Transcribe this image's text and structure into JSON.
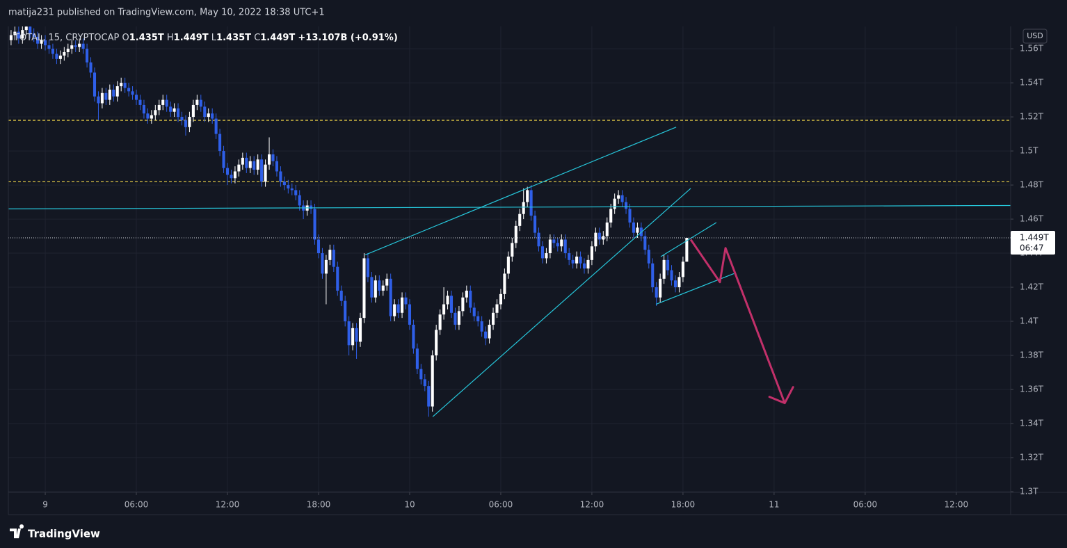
{
  "chart_data": {
    "type": "candlestick",
    "published": "matija231 published on TradingView.com, May 10, 2022 18:38 UTC+1",
    "symbol": "TOTAL, 15, CRYPTOCAP",
    "quote": [
      {
        "label": "O",
        "value": "1.435T"
      },
      {
        "label": "H",
        "value": "1.449T"
      },
      {
        "label": "L",
        "value": "1.435T"
      },
      {
        "label": "C",
        "value": "1.449T"
      }
    ],
    "change": "+13.107B (+0.91%)",
    "currency": "USD",
    "last_price_label": "1.449T",
    "countdown": "06:47",
    "brand": "TradingView",
    "up_color": "#ffffff",
    "down_color": "#2f5fe8",
    "grid": true,
    "xlim": [
      -2.43,
      63.58
    ],
    "ylim": [
      1.2996,
      1.5731
    ],
    "xticks": [
      {
        "value": 0,
        "label": "9"
      },
      {
        "value": 6,
        "label": "06:00"
      },
      {
        "value": 12,
        "label": "12:00"
      },
      {
        "value": 18,
        "label": "18:00"
      },
      {
        "value": 24,
        "label": "10"
      },
      {
        "value": 30,
        "label": "06:00"
      },
      {
        "value": 36,
        "label": "12:00"
      },
      {
        "value": 42,
        "label": "18:00"
      },
      {
        "value": 48,
        "label": "11"
      },
      {
        "value": 54,
        "label": "06:00"
      },
      {
        "value": 60,
        "label": "12:00"
      }
    ],
    "yticks": [
      {
        "value": 1.3,
        "label": "1.3T"
      },
      {
        "value": 1.32,
        "label": "1.32T"
      },
      {
        "value": 1.34,
        "label": "1.34T"
      },
      {
        "value": 1.36,
        "label": "1.36T"
      },
      {
        "value": 1.38,
        "label": "1.38T"
      },
      {
        "value": 1.4,
        "label": "1.4T"
      },
      {
        "value": 1.42,
        "label": "1.42T"
      },
      {
        "value": 1.44,
        "label": "1.44T"
      },
      {
        "value": 1.46,
        "label": "1.46T"
      },
      {
        "value": 1.48,
        "label": "1.48T"
      },
      {
        "value": 1.5,
        "label": "1.5T"
      },
      {
        "value": 1.52,
        "label": "1.52T"
      },
      {
        "value": 1.54,
        "label": "1.54T"
      },
      {
        "value": 1.56,
        "label": "1.56T"
      }
    ],
    "levels": [
      {
        "value": 1.518,
        "color": "#f5d94a"
      },
      {
        "value": 1.482,
        "color": "#f5d94a"
      }
    ],
    "trendlines": [
      {
        "points": [
          [
            -2.43,
            1.466
          ],
          [
            63.58,
            1.468
          ]
        ],
        "color": "#26c6da"
      },
      {
        "points": [
          [
            21.07,
            1.439
          ],
          [
            41.55,
            1.514
          ]
        ],
        "color": "#26c6da"
      },
      {
        "points": [
          [
            25.52,
            1.344
          ],
          [
            42.51,
            1.478
          ]
        ],
        "color": "#26c6da"
      },
      {
        "points": [
          [
            40.54,
            1.438
          ],
          [
            44.2,
            1.458
          ]
        ],
        "color": "#26c6da"
      },
      {
        "points": [
          [
            40.22,
            1.41
          ],
          [
            45.35,
            1.428
          ]
        ],
        "color": "#26c6da"
      }
    ],
    "arrow": {
      "points": [
        [
          42.51,
          1.448
        ],
        [
          44.43,
          1.423
        ],
        [
          44.8,
          1.443
        ],
        [
          48.7,
          1.352
        ]
      ],
      "color": "#c2306a"
    },
    "x": [
      -2.25,
      -2,
      -1.75,
      -1.5,
      -1.25,
      -1,
      -0.75,
      -0.5,
      -0.25,
      0,
      0.25,
      0.5,
      0.75,
      1,
      1.25,
      1.5,
      1.75,
      2,
      2.25,
      2.5,
      2.75,
      3,
      3.25,
      3.5,
      3.75,
      4,
      4.25,
      4.5,
      4.75,
      5,
      5.25,
      5.5,
      5.75,
      6,
      6.25,
      6.5,
      6.75,
      7,
      7.25,
      7.5,
      7.75,
      8,
      8.25,
      8.5,
      8.75,
      9,
      9.25,
      9.5,
      9.75,
      10,
      10.25,
      10.5,
      10.75,
      11,
      11.25,
      11.5,
      11.75,
      12,
      12.25,
      12.5,
      12.75,
      13,
      13.25,
      13.5,
      13.75,
      14,
      14.25,
      14.5,
      14.75,
      15,
      15.25,
      15.5,
      15.75,
      16,
      16.25,
      16.5,
      16.75,
      17,
      17.25,
      17.5,
      17.75,
      18,
      18.25,
      18.5,
      18.75,
      19,
      19.25,
      19.5,
      19.75,
      20,
      20.25,
      20.5,
      20.75,
      21,
      21.25,
      21.5,
      21.75,
      22,
      22.25,
      22.5,
      22.75,
      23,
      23.25,
      23.5,
      23.75,
      24,
      24.25,
      24.5,
      24.75,
      25,
      25.25,
      25.5,
      25.75,
      26,
      26.25,
      26.5,
      26.75,
      27,
      27.25,
      27.5,
      27.75,
      28,
      28.25,
      28.5,
      28.75,
      29,
      29.25,
      29.5,
      29.75,
      30,
      30.25,
      30.5,
      30.75,
      31,
      31.25,
      31.5,
      31.75,
      32,
      32.25,
      32.5,
      32.75,
      33,
      33.25,
      33.5,
      33.75,
      34,
      34.25,
      34.5,
      34.75,
      35,
      35.25,
      35.5,
      35.75,
      36,
      36.25,
      36.5,
      36.75,
      37,
      37.25,
      37.5,
      37.75,
      38,
      38.25,
      38.5,
      38.75,
      39,
      39.25,
      39.5,
      39.75,
      40,
      40.25,
      40.5,
      40.75,
      41,
      41.25,
      41.5,
      41.75,
      42,
      42.25
    ],
    "ohlc": [
      [
        1.565,
        1.571,
        1.562,
        1.568
      ],
      [
        1.568,
        1.573,
        1.565,
        1.57
      ],
      [
        1.57,
        1.573,
        1.563,
        1.566
      ],
      [
        1.566,
        1.574,
        1.563,
        1.571
      ],
      [
        1.571,
        1.576,
        1.568,
        1.573
      ],
      [
        1.573,
        1.576,
        1.566,
        1.569
      ],
      [
        1.569,
        1.572,
        1.564,
        1.567
      ],
      [
        1.567,
        1.57,
        1.56,
        1.563
      ],
      [
        1.563,
        1.568,
        1.56,
        1.565
      ],
      [
        1.565,
        1.568,
        1.559,
        1.562
      ],
      [
        1.562,
        1.565,
        1.557,
        1.56
      ],
      [
        1.56,
        1.563,
        1.554,
        1.557
      ],
      [
        1.557,
        1.56,
        1.551,
        1.554
      ],
      [
        1.554,
        1.559,
        1.551,
        1.556
      ],
      [
        1.556,
        1.561,
        1.553,
        1.558
      ],
      [
        1.558,
        1.563,
        1.555,
        1.56
      ],
      [
        1.56,
        1.565,
        1.557,
        1.562
      ],
      [
        1.562,
        1.565,
        1.558,
        1.561
      ],
      [
        1.561,
        1.566,
        1.558,
        1.563
      ],
      [
        1.563,
        1.566,
        1.557,
        1.56
      ],
      [
        1.56,
        1.563,
        1.549,
        1.552
      ],
      [
        1.552,
        1.555,
        1.543,
        1.546
      ],
      [
        1.546,
        1.549,
        1.529,
        1.532
      ],
      [
        1.532,
        1.535,
        1.518,
        1.528
      ],
      [
        1.528,
        1.537,
        1.525,
        1.534
      ],
      [
        1.534,
        1.537,
        1.527,
        1.53
      ],
      [
        1.53,
        1.539,
        1.527,
        1.536
      ],
      [
        1.536,
        1.539,
        1.529,
        1.532
      ],
      [
        1.532,
        1.541,
        1.529,
        1.538
      ],
      [
        1.538,
        1.543,
        1.535,
        1.54
      ],
      [
        1.54,
        1.543,
        1.534,
        1.537
      ],
      [
        1.537,
        1.54,
        1.532,
        1.535
      ],
      [
        1.535,
        1.538,
        1.53,
        1.533
      ],
      [
        1.533,
        1.536,
        1.527,
        1.53
      ],
      [
        1.53,
        1.533,
        1.524,
        1.527
      ],
      [
        1.527,
        1.53,
        1.519,
        1.522
      ],
      [
        1.522,
        1.525,
        1.516,
        1.519
      ],
      [
        1.519,
        1.524,
        1.516,
        1.521
      ],
      [
        1.521,
        1.527,
        1.518,
        1.524
      ],
      [
        1.524,
        1.53,
        1.521,
        1.527
      ],
      [
        1.527,
        1.533,
        1.524,
        1.53
      ],
      [
        1.53,
        1.533,
        1.523,
        1.526
      ],
      [
        1.526,
        1.529,
        1.52,
        1.523
      ],
      [
        1.523,
        1.528,
        1.52,
        1.525
      ],
      [
        1.525,
        1.528,
        1.517,
        1.52
      ],
      [
        1.52,
        1.523,
        1.515,
        1.518
      ],
      [
        1.518,
        1.521,
        1.509,
        1.514
      ],
      [
        1.514,
        1.523,
        1.511,
        1.52
      ],
      [
        1.52,
        1.53,
        1.517,
        1.527
      ],
      [
        1.527,
        1.533,
        1.524,
        1.53
      ],
      [
        1.53,
        1.533,
        1.523,
        1.526
      ],
      [
        1.526,
        1.529,
        1.517,
        1.52
      ],
      [
        1.52,
        1.525,
        1.517,
        1.522
      ],
      [
        1.522,
        1.525,
        1.516,
        1.519
      ],
      [
        1.519,
        1.522,
        1.507,
        1.51
      ],
      [
        1.51,
        1.513,
        1.497,
        1.5
      ],
      [
        1.5,
        1.503,
        1.487,
        1.49
      ],
      [
        1.49,
        1.493,
        1.48,
        1.486
      ],
      [
        1.486,
        1.489,
        1.481,
        1.484
      ],
      [
        1.484,
        1.491,
        1.481,
        1.488
      ],
      [
        1.488,
        1.495,
        1.485,
        1.492
      ],
      [
        1.492,
        1.499,
        1.489,
        1.496
      ],
      [
        1.496,
        1.499,
        1.487,
        1.49
      ],
      [
        1.49,
        1.497,
        1.487,
        1.494
      ],
      [
        1.494,
        1.497,
        1.486,
        1.489
      ],
      [
        1.489,
        1.498,
        1.486,
        1.495
      ],
      [
        1.495,
        1.498,
        1.479,
        1.482
      ],
      [
        1.482,
        1.495,
        1.479,
        1.492
      ],
      [
        1.492,
        1.508,
        1.489,
        1.498
      ],
      [
        1.498,
        1.501,
        1.491,
        1.494
      ],
      [
        1.494,
        1.497,
        1.485,
        1.488
      ],
      [
        1.488,
        1.491,
        1.479,
        1.482
      ],
      [
        1.482,
        1.485,
        1.477,
        1.48
      ],
      [
        1.48,
        1.483,
        1.475,
        1.478
      ],
      [
        1.478,
        1.481,
        1.474,
        1.477
      ],
      [
        1.477,
        1.48,
        1.471,
        1.474
      ],
      [
        1.474,
        1.477,
        1.465,
        1.468
      ],
      [
        1.468,
        1.471,
        1.46,
        1.465
      ],
      [
        1.465,
        1.471,
        1.462,
        1.468
      ],
      [
        1.468,
        1.471,
        1.463,
        1.466
      ],
      [
        1.466,
        1.469,
        1.445,
        1.448
      ],
      [
        1.448,
        1.451,
        1.437,
        1.44
      ],
      [
        1.44,
        1.443,
        1.425,
        1.428
      ],
      [
        1.428,
        1.439,
        1.41,
        1.436
      ],
      [
        1.436,
        1.445,
        1.433,
        1.442
      ],
      [
        1.442,
        1.445,
        1.429,
        1.432
      ],
      [
        1.432,
        1.435,
        1.415,
        1.418
      ],
      [
        1.418,
        1.421,
        1.409,
        1.412
      ],
      [
        1.412,
        1.415,
        1.397,
        1.4
      ],
      [
        1.4,
        1.403,
        1.38,
        1.386
      ],
      [
        1.386,
        1.399,
        1.383,
        1.396
      ],
      [
        1.396,
        1.399,
        1.378,
        1.388
      ],
      [
        1.388,
        1.405,
        1.385,
        1.402
      ],
      [
        1.402,
        1.44,
        1.399,
        1.437
      ],
      [
        1.437,
        1.44,
        1.423,
        1.426
      ],
      [
        1.426,
        1.429,
        1.411,
        1.414
      ],
      [
        1.414,
        1.427,
        1.411,
        1.424
      ],
      [
        1.424,
        1.427,
        1.415,
        1.418
      ],
      [
        1.418,
        1.424,
        1.415,
        1.421
      ],
      [
        1.421,
        1.428,
        1.418,
        1.425
      ],
      [
        1.425,
        1.428,
        1.4,
        1.403
      ],
      [
        1.403,
        1.413,
        1.4,
        1.41
      ],
      [
        1.41,
        1.413,
        1.402,
        1.405
      ],
      [
        1.405,
        1.417,
        1.402,
        1.414
      ],
      [
        1.414,
        1.417,
        1.407,
        1.41
      ],
      [
        1.41,
        1.413,
        1.395,
        1.398
      ],
      [
        1.398,
        1.401,
        1.381,
        1.384
      ],
      [
        1.384,
        1.387,
        1.369,
        1.372
      ],
      [
        1.372,
        1.375,
        1.363,
        1.366
      ],
      [
        1.366,
        1.369,
        1.359,
        1.362
      ],
      [
        1.362,
        1.365,
        1.344,
        1.35
      ],
      [
        1.35,
        1.383,
        1.347,
        1.38
      ],
      [
        1.38,
        1.398,
        1.377,
        1.395
      ],
      [
        1.395,
        1.407,
        1.392,
        1.404
      ],
      [
        1.404,
        1.42,
        1.401,
        1.41
      ],
      [
        1.41,
        1.418,
        1.407,
        1.415
      ],
      [
        1.415,
        1.418,
        1.402,
        1.405
      ],
      [
        1.405,
        1.408,
        1.395,
        1.398
      ],
      [
        1.398,
        1.409,
        1.395,
        1.406
      ],
      [
        1.406,
        1.417,
        1.403,
        1.414
      ],
      [
        1.414,
        1.421,
        1.411,
        1.418
      ],
      [
        1.418,
        1.421,
        1.405,
        1.408
      ],
      [
        1.408,
        1.411,
        1.4,
        1.403
      ],
      [
        1.403,
        1.406,
        1.397,
        1.4
      ],
      [
        1.4,
        1.403,
        1.391,
        1.394
      ],
      [
        1.394,
        1.397,
        1.386,
        1.39
      ],
      [
        1.39,
        1.401,
        1.387,
        1.398
      ],
      [
        1.398,
        1.408,
        1.395,
        1.405
      ],
      [
        1.405,
        1.413,
        1.402,
        1.41
      ],
      [
        1.41,
        1.419,
        1.407,
        1.416
      ],
      [
        1.416,
        1.431,
        1.413,
        1.428
      ],
      [
        1.428,
        1.441,
        1.425,
        1.438
      ],
      [
        1.438,
        1.449,
        1.435,
        1.446
      ],
      [
        1.446,
        1.459,
        1.443,
        1.456
      ],
      [
        1.456,
        1.466,
        1.453,
        1.463
      ],
      [
        1.463,
        1.478,
        1.46,
        1.47
      ],
      [
        1.47,
        1.479,
        1.467,
        1.477
      ],
      [
        1.477,
        1.48,
        1.459,
        1.462
      ],
      [
        1.462,
        1.465,
        1.449,
        1.452
      ],
      [
        1.452,
        1.455,
        1.441,
        1.444
      ],
      [
        1.444,
        1.447,
        1.434,
        1.437
      ],
      [
        1.437,
        1.443,
        1.434,
        1.44
      ],
      [
        1.44,
        1.451,
        1.437,
        1.448
      ],
      [
        1.448,
        1.451,
        1.443,
        1.446
      ],
      [
        1.446,
        1.449,
        1.441,
        1.444
      ],
      [
        1.444,
        1.451,
        1.441,
        1.448
      ],
      [
        1.448,
        1.451,
        1.437,
        1.44
      ],
      [
        1.44,
        1.443,
        1.433,
        1.436
      ],
      [
        1.436,
        1.439,
        1.431,
        1.434
      ],
      [
        1.434,
        1.441,
        1.431,
        1.438
      ],
      [
        1.438,
        1.441,
        1.431,
        1.434
      ],
      [
        1.434,
        1.437,
        1.428,
        1.431
      ],
      [
        1.431,
        1.439,
        1.428,
        1.436
      ],
      [
        1.436,
        1.447,
        1.433,
        1.444
      ],
      [
        1.444,
        1.455,
        1.441,
        1.452
      ],
      [
        1.452,
        1.455,
        1.445,
        1.448
      ],
      [
        1.448,
        1.453,
        1.445,
        1.45
      ],
      [
        1.45,
        1.461,
        1.447,
        1.458
      ],
      [
        1.458,
        1.469,
        1.455,
        1.466
      ],
      [
        1.466,
        1.475,
        1.463,
        1.472
      ],
      [
        1.472,
        1.477,
        1.469,
        1.474
      ],
      [
        1.474,
        1.477,
        1.467,
        1.47
      ],
      [
        1.47,
        1.473,
        1.463,
        1.466
      ],
      [
        1.466,
        1.469,
        1.455,
        1.458
      ],
      [
        1.458,
        1.461,
        1.449,
        1.452
      ],
      [
        1.452,
        1.458,
        1.449,
        1.455
      ],
      [
        1.455,
        1.458,
        1.447,
        1.45
      ],
      [
        1.45,
        1.453,
        1.439,
        1.442
      ],
      [
        1.442,
        1.445,
        1.431,
        1.434
      ],
      [
        1.434,
        1.437,
        1.417,
        1.42
      ],
      [
        1.42,
        1.423,
        1.409,
        1.414
      ],
      [
        1.414,
        1.428,
        1.411,
        1.425
      ],
      [
        1.425,
        1.439,
        1.422,
        1.436
      ],
      [
        1.436,
        1.439,
        1.427,
        1.43
      ],
      [
        1.43,
        1.433,
        1.421,
        1.424
      ],
      [
        1.424,
        1.427,
        1.417,
        1.42
      ],
      [
        1.42,
        1.429,
        1.417,
        1.426
      ],
      [
        1.426,
        1.438,
        1.423,
        1.435
      ],
      [
        1.435,
        1.449,
        1.435,
        1.449
      ]
    ]
  }
}
